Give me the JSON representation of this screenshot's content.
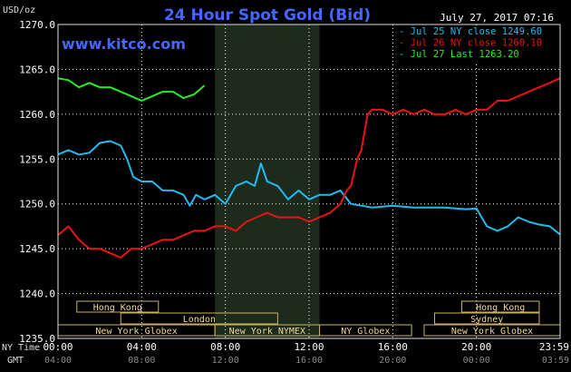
{
  "chart_data": {
    "type": "line",
    "title": "24 Hour Spot Gold (Bid)",
    "ylabel": "USD/oz",
    "watermark": "www.kitco.com",
    "timestamp": "July 27, 2017 07:16",
    "ylim": [
      1235,
      1270
    ],
    "yticks": [
      "1235.0",
      "1240.0",
      "1245.0",
      "1250.0",
      "1255.0",
      "1260.0",
      "1265.0",
      "1270.0"
    ],
    "x_hours_range": [
      0,
      24
    ],
    "time_rows": {
      "ny_label": "NY Time",
      "gmt_label": "GMT",
      "ny_ticks": [
        "00:00",
        "04:00",
        "08:00",
        "12:00",
        "16:00",
        "20:00",
        "23:59"
      ],
      "gmt_ticks": [
        "04:00",
        "08:00",
        "12:00",
        "16:00",
        "20:00",
        "00:00",
        "03:59"
      ]
    },
    "highlight_hours": [
      7.5,
      12.5
    ],
    "legend": {
      "placement": "top-right",
      "entries": [
        {
          "label": "Jul 25 NY close 1249.60",
          "color": "#22bbee"
        },
        {
          "label": "Jul 26 NY close 1260.10",
          "color": "#ee1111"
        },
        {
          "label": "Jul 27 Last 1263.20",
          "color": "#22ee22"
        }
      ]
    },
    "sessions": [
      {
        "label": "Hong Kong",
        "row": 0,
        "start": 0.9,
        "end": 4.8
      },
      {
        "label": "London",
        "row": 1,
        "start": 3.0,
        "end": 10.5
      },
      {
        "label": "New York Globex",
        "row": 2,
        "start": 0,
        "end": 7.5
      },
      {
        "label": "New York NYMEX",
        "row": 2,
        "start": 7.5,
        "end": 12.5
      },
      {
        "label": "NY Globex",
        "row": 2,
        "start": 12.5,
        "end": 16.9
      },
      {
        "label": "Hong Kong",
        "row": 0,
        "start": 19.3,
        "end": 23.0
      },
      {
        "label": "Sydney",
        "row": 1,
        "start": 18.0,
        "end": 23.0
      },
      {
        "label": "New York Globex",
        "row": 2,
        "start": 17.5,
        "end": 24
      }
    ],
    "series": [
      {
        "name": "Jul 25",
        "color": "#22bbee",
        "x": [
          0,
          0.5,
          1,
          1.5,
          2,
          2.5,
          3,
          3.3,
          3.6,
          4,
          4.5,
          5,
          5.5,
          6,
          6.3,
          6.6,
          7,
          7.5,
          8,
          8.5,
          9,
          9.4,
          9.7,
          10,
          10.5,
          11,
          11.5,
          12,
          12.5,
          13,
          13.5,
          14,
          15,
          16,
          17,
          18,
          18.5,
          19,
          19.5,
          20,
          20.5,
          21,
          21.5,
          22,
          22.5,
          23,
          23.5,
          23.99
        ],
        "y": [
          1255.5,
          1256.0,
          1255.5,
          1255.7,
          1256.8,
          1257.0,
          1256.5,
          1255.0,
          1253.0,
          1252.5,
          1252.5,
          1251.5,
          1251.5,
          1251.0,
          1249.8,
          1251.0,
          1250.5,
          1251.0,
          1250.0,
          1252.0,
          1252.5,
          1252.0,
          1254.5,
          1252.5,
          1252.0,
          1250.5,
          1251.5,
          1250.5,
          1251.0,
          1251.0,
          1251.5,
          1250.0,
          1249.6,
          1249.8,
          1249.6,
          1249.6,
          1249.6,
          1249.5,
          1249.4,
          1249.5,
          1247.5,
          1247.0,
          1247.5,
          1248.5,
          1248.0,
          1247.7,
          1247.5,
          1246.6
        ]
      },
      {
        "name": "Jul 26",
        "color": "#ee1111",
        "x": [
          0,
          0.5,
          1,
          1.5,
          2,
          2.5,
          3,
          3.5,
          4,
          4.5,
          5,
          5.5,
          6,
          6.5,
          7,
          7.5,
          8,
          8.5,
          9,
          9.5,
          10,
          10.5,
          11,
          11.5,
          12,
          12.5,
          13,
          13.5,
          13.8,
          14,
          14.3,
          14.5,
          14.8,
          15,
          15.5,
          16,
          16.5,
          17,
          17.5,
          18,
          18.5,
          19,
          19.5,
          20,
          20.5,
          21,
          21.5,
          22,
          22.5,
          23,
          23.5,
          23.99
        ],
        "y": [
          1246.5,
          1247.5,
          1246.0,
          1245.0,
          1245.0,
          1244.5,
          1244.0,
          1245.0,
          1245.0,
          1245.5,
          1246.0,
          1246.0,
          1246.5,
          1247.0,
          1247.0,
          1247.5,
          1247.5,
          1247.0,
          1248.0,
          1248.5,
          1249.0,
          1248.5,
          1248.5,
          1248.5,
          1248.0,
          1248.5,
          1249.0,
          1250.0,
          1251.5,
          1252.0,
          1255.0,
          1256.0,
          1260.0,
          1260.5,
          1260.5,
          1260.0,
          1260.5,
          1260.0,
          1260.5,
          1260.0,
          1260.0,
          1260.5,
          1260.0,
          1260.5,
          1260.5,
          1261.5,
          1261.5,
          1262.0,
          1262.5,
          1263.0,
          1263.5,
          1264.0
        ]
      },
      {
        "name": "Jul 27",
        "color": "#22ee22",
        "x": [
          0,
          0.5,
          1,
          1.5,
          2,
          2.5,
          3,
          3.5,
          4,
          4.5,
          5,
          5.5,
          6,
          6.5,
          7
        ],
        "y": [
          1264.0,
          1263.8,
          1263.0,
          1263.5,
          1263.0,
          1263.0,
          1262.5,
          1262.0,
          1261.5,
          1262.0,
          1262.5,
          1262.5,
          1261.8,
          1262.2,
          1263.2
        ]
      }
    ]
  }
}
